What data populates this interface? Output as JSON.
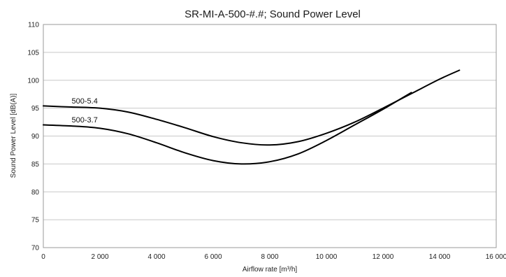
{
  "chart_data": {
    "type": "line",
    "title": "SR-MI-A-500-#.#; Sound Power Level",
    "xlabel": "Airflow rate [m³/h]",
    "ylabel": "Sound Power Level [dB(A)]",
    "xlim": [
      0,
      16000
    ],
    "ylim": [
      70,
      110
    ],
    "x_ticks": [
      0,
      2000,
      4000,
      6000,
      8000,
      10000,
      12000,
      14000,
      16000
    ],
    "x_tick_labels": [
      "0",
      "2 000",
      "4 000",
      "6 000",
      "8 000",
      "10 000",
      "12 000",
      "14 000",
      "16 000"
    ],
    "y_ticks": [
      70,
      75,
      80,
      85,
      90,
      95,
      100,
      105,
      110
    ],
    "y_tick_labels": [
      "70",
      "75",
      "80",
      "85",
      "90",
      "95",
      "100",
      "105",
      "110"
    ],
    "grid": "horizontal",
    "legend": "none",
    "series": [
      {
        "name": "500-5.4",
        "x": [
          0,
          1000,
          2000,
          3000,
          4000,
          5000,
          6000,
          7000,
          8000,
          9000,
          10000,
          11000,
          12000,
          13000,
          14000,
          14700
        ],
        "y": [
          95.4,
          95.2,
          95.0,
          94.3,
          93.0,
          91.5,
          89.9,
          88.8,
          88.4,
          89.0,
          90.5,
          92.5,
          95.0,
          97.6,
          100.2,
          101.8
        ]
      },
      {
        "name": "500-3.7",
        "x": [
          0,
          1000,
          2000,
          3000,
          4000,
          5000,
          6000,
          7000,
          8000,
          9000,
          10000,
          11000,
          12000,
          13000
        ],
        "y": [
          92.0,
          91.8,
          91.4,
          90.4,
          88.8,
          87.0,
          85.6,
          85.0,
          85.4,
          86.8,
          89.2,
          92.0,
          94.8,
          97.8
        ]
      }
    ]
  }
}
